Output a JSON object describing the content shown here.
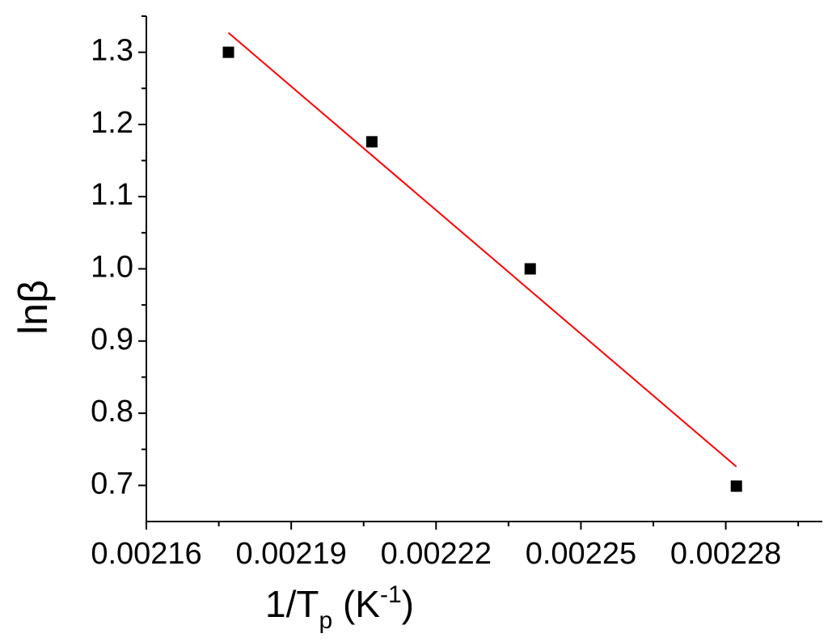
{
  "chart_data": {
    "type": "scatter",
    "x_label": [
      "1/T",
      "p",
      " (K",
      "-1",
      ")"
    ],
    "y_label": "lnβ",
    "series": [
      {
        "type": "scatter",
        "color": "#000000",
        "x": [
          0.002177,
          0.0022067,
          0.0022395,
          0.0022822
        ],
        "values": [
          1.3,
          1.176,
          1.0,
          0.699
        ]
      },
      {
        "type": "line",
        "color": "#ff0000",
        "x": [
          0.002177,
          0.0022822
        ],
        "values": [
          1.327,
          0.726
        ]
      }
    ],
    "xlim": [
      0.00216,
      0.0023
    ],
    "ylim": [
      0.65,
      1.35
    ],
    "xticks": [
      0.00216,
      0.00219,
      0.00222,
      0.00225,
      0.00228
    ],
    "xminorticks": [
      0.002175,
      0.002205,
      0.002235,
      0.002265,
      0.002295
    ],
    "yticks": [
      0.7,
      0.8,
      0.9,
      {
        "value": 1,
        "label": "1.0"
      },
      1.1,
      1.2,
      1.3
    ],
    "yminorticks": [
      0.75,
      0.85,
      0.95,
      1.05,
      1.15,
      1.25,
      1.35
    ]
  }
}
